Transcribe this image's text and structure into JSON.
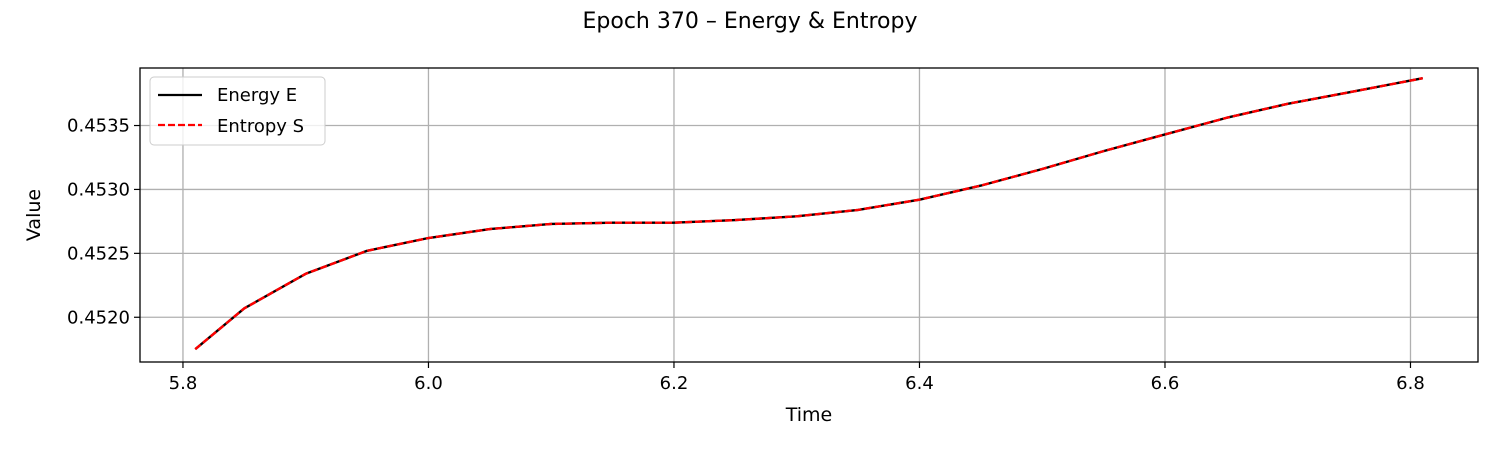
{
  "chart_data": {
    "type": "line",
    "title": "Epoch 370 – Energy & Entropy",
    "xlabel": "Time",
    "ylabel": "Value",
    "xlim": [
      5.765,
      6.855
    ],
    "ylim": [
      0.45165,
      0.45395
    ],
    "xticks": [
      5.8,
      6.0,
      6.2,
      6.4,
      6.6,
      6.8
    ],
    "xtick_labels": [
      "5.8",
      "6.0",
      "6.2",
      "6.4",
      "6.6",
      "6.8"
    ],
    "yticks": [
      0.452,
      0.4525,
      0.453,
      0.4535
    ],
    "ytick_labels": [
      "0.4520",
      "0.4525",
      "0.4530",
      "0.4535"
    ],
    "grid": true,
    "legend_position": "top-left",
    "x": [
      5.81,
      5.85,
      5.9,
      5.95,
      6.0,
      6.05,
      6.1,
      6.15,
      6.2,
      6.25,
      6.3,
      6.35,
      6.4,
      6.45,
      6.5,
      6.55,
      6.6,
      6.65,
      6.7,
      6.75,
      6.81
    ],
    "series": [
      {
        "name": "Energy E",
        "color": "#000000",
        "style": "solid",
        "values": [
          0.45175,
          0.45207,
          0.45234,
          0.45252,
          0.45262,
          0.45269,
          0.45273,
          0.45274,
          0.45274,
          0.45276,
          0.45279,
          0.45284,
          0.45292,
          0.45303,
          0.45316,
          0.4533,
          0.45343,
          0.45356,
          0.45367,
          0.45376,
          0.45387
        ]
      },
      {
        "name": "Entropy S",
        "color": "#ff0000",
        "style": "dashed",
        "values": [
          0.45175,
          0.45207,
          0.45234,
          0.45252,
          0.45262,
          0.45269,
          0.45273,
          0.45274,
          0.45274,
          0.45276,
          0.45279,
          0.45284,
          0.45292,
          0.45303,
          0.45316,
          0.4533,
          0.45343,
          0.45356,
          0.45367,
          0.45376,
          0.45387
        ]
      }
    ]
  }
}
